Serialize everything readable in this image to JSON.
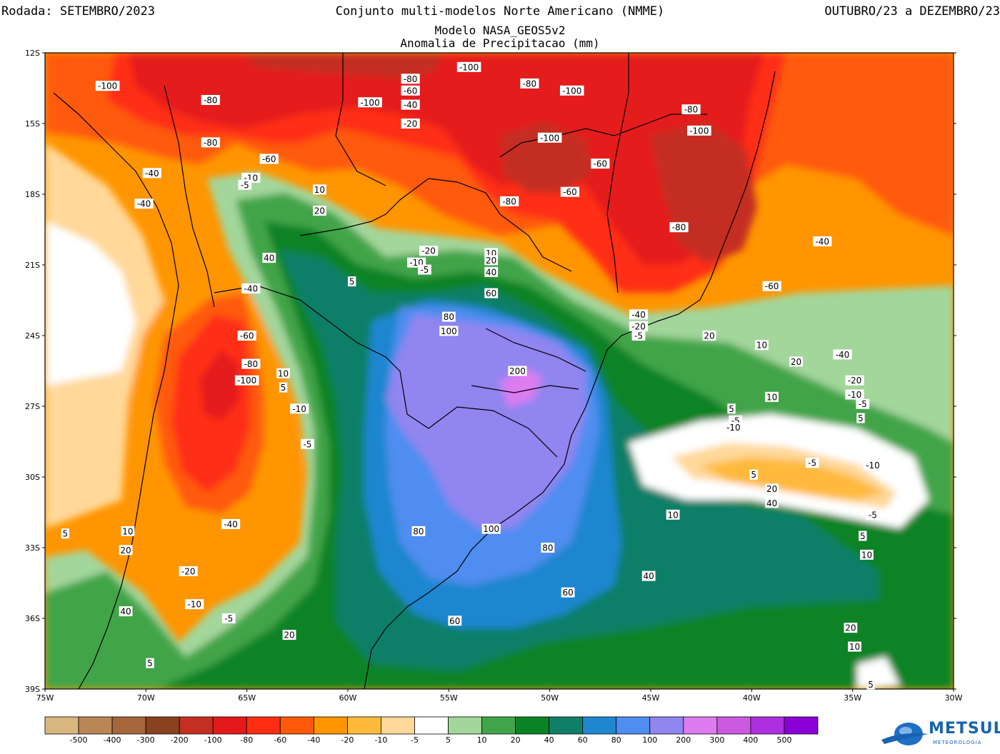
{
  "header": {
    "run": "Rodada: SETEMBRO/2023",
    "title": "Conjunto multi-modelos Norte Americano (NMME)",
    "period": "OUTUBRO/23 a DEZEMBRO/23",
    "model": "Modelo NASA_GEOS5v2",
    "variable": "Anomalia de Precipitacao (mm)"
  },
  "axes": {
    "lat_labels": [
      "12S",
      "15S",
      "18S",
      "21S",
      "24S",
      "27S",
      "30S",
      "33S",
      "36S",
      "39S"
    ],
    "lon_labels": [
      "75W",
      "70W",
      "65W",
      "60W",
      "55W",
      "50W",
      "45W",
      "40W",
      "35W",
      "30W"
    ]
  },
  "colorbar": {
    "colors": [
      "#d8b77e",
      "#b98656",
      "#a5663c",
      "#8a4120",
      "#c42f21",
      "#e41a1a",
      "#ff2e12",
      "#ff5a0a",
      "#ff9500",
      "#ffba3c",
      "#ffd89a",
      "#ffffff",
      "#a3d69b",
      "#42a44a",
      "#0a8325",
      "#107f68",
      "#1f86d0",
      "#4f8df0",
      "#9185f0",
      "#dc7cf0",
      "#cc5ae0",
      "#ad2fe0",
      "#8c00d8"
    ],
    "ticks": [
      "-500",
      "-400",
      "-300",
      "-200",
      "-100",
      "-80",
      "-60",
      "-40",
      "-20",
      "-10",
      "-5",
      "5",
      "10",
      "20",
      "40",
      "60",
      "80",
      "100",
      "200",
      "300",
      "400",
      "500"
    ]
  },
  "contour_labels": [
    {
      "t": "-100",
      "lon": -71.9,
      "lat": -13.4
    },
    {
      "t": "-80",
      "lon": -66.8,
      "lat": -14.0
    },
    {
      "t": "-80",
      "lon": -56.9,
      "lat": -13.1
    },
    {
      "t": "-60",
      "lon": -56.9,
      "lat": -13.6
    },
    {
      "t": "-40",
      "lon": -56.9,
      "lat": -14.2
    },
    {
      "t": "-100",
      "lon": -54.0,
      "lat": -12.6
    },
    {
      "t": "-100",
      "lon": -58.9,
      "lat": -14.1
    },
    {
      "t": "-80",
      "lon": -51.0,
      "lat": -13.3
    },
    {
      "t": "-100",
      "lon": -48.9,
      "lat": -13.6
    },
    {
      "t": "-80",
      "lon": -43.0,
      "lat": -14.4
    },
    {
      "t": "-100",
      "lon": -42.6,
      "lat": -15.3
    },
    {
      "t": "-20",
      "lon": -56.9,
      "lat": -15.0
    },
    {
      "t": "-80",
      "lon": -66.8,
      "lat": -15.8
    },
    {
      "t": "-100",
      "lon": -50.0,
      "lat": -15.6
    },
    {
      "t": "-60",
      "lon": -63.9,
      "lat": -16.5
    },
    {
      "t": "-60",
      "lon": -47.5,
      "lat": -16.7
    },
    {
      "t": "-40",
      "lon": -69.7,
      "lat": -17.1
    },
    {
      "t": "-10",
      "lon": -64.8,
      "lat": -17.3
    },
    {
      "t": "-5",
      "lon": -65.1,
      "lat": -17.6
    },
    {
      "t": "10",
      "lon": -61.4,
      "lat": -17.8
    },
    {
      "t": "-60",
      "lon": -49.0,
      "lat": -17.9
    },
    {
      "t": "-80",
      "lon": -52.0,
      "lat": -18.3
    },
    {
      "t": "-40",
      "lon": -70.1,
      "lat": -18.4
    },
    {
      "t": "20",
      "lon": -61.4,
      "lat": -18.7
    },
    {
      "t": "-80",
      "lon": -43.6,
      "lat": -19.4
    },
    {
      "t": "-40",
      "lon": -36.5,
      "lat": -20.0
    },
    {
      "t": "-20",
      "lon": -56.0,
      "lat": -20.4
    },
    {
      "t": "40",
      "lon": -63.9,
      "lat": -20.7
    },
    {
      "t": "10",
      "lon": -52.9,
      "lat": -20.5
    },
    {
      "t": "20",
      "lon": -52.9,
      "lat": -20.8
    },
    {
      "t": "-10",
      "lon": -56.6,
      "lat": -20.9
    },
    {
      "t": "-5",
      "lon": -56.2,
      "lat": -21.2
    },
    {
      "t": "40",
      "lon": -52.9,
      "lat": -21.3
    },
    {
      "t": "5",
      "lon": -59.8,
      "lat": -21.7
    },
    {
      "t": "-60",
      "lon": -39.0,
      "lat": -21.9
    },
    {
      "t": "60",
      "lon": -52.9,
      "lat": -22.2
    },
    {
      "t": "-40",
      "lon": -64.8,
      "lat": -22.0
    },
    {
      "t": "-40",
      "lon": -45.6,
      "lat": -23.1
    },
    {
      "t": "-20",
      "lon": -45.6,
      "lat": -23.6
    },
    {
      "t": "-5",
      "lon": -45.6,
      "lat": -24.0
    },
    {
      "t": "80",
      "lon": -55.0,
      "lat": -23.2
    },
    {
      "t": "100",
      "lon": -55.0,
      "lat": -23.8
    },
    {
      "t": "-60",
      "lon": -65.0,
      "lat": -24.0
    },
    {
      "t": "20",
      "lon": -42.1,
      "lat": -24.0
    },
    {
      "t": "10",
      "lon": -39.5,
      "lat": -24.4
    },
    {
      "t": "-40",
      "lon": -35.5,
      "lat": -24.8
    },
    {
      "t": "-80",
      "lon": -64.8,
      "lat": -25.2
    },
    {
      "t": "20",
      "lon": -37.8,
      "lat": -25.1
    },
    {
      "t": "200",
      "lon": -51.6,
      "lat": -25.5
    },
    {
      "t": "10",
      "lon": -63.2,
      "lat": -25.6
    },
    {
      "t": "-100",
      "lon": -65.0,
      "lat": -25.9
    },
    {
      "t": "-20",
      "lon": -34.9,
      "lat": -25.9
    },
    {
      "t": "5",
      "lon": -63.2,
      "lat": -26.2
    },
    {
      "t": "10",
      "lon": -39.0,
      "lat": -26.6
    },
    {
      "t": "-10",
      "lon": -34.9,
      "lat": -26.5
    },
    {
      "t": "-5",
      "lon": -34.5,
      "lat": -26.9
    },
    {
      "t": "-10",
      "lon": -62.4,
      "lat": -27.1
    },
    {
      "t": "5",
      "lon": -41.0,
      "lat": -27.1
    },
    {
      "t": "-5",
      "lon": -40.8,
      "lat": -27.6
    },
    {
      "t": "-10",
      "lon": -40.9,
      "lat": -27.9
    },
    {
      "t": "5",
      "lon": -34.6,
      "lat": -27.5
    },
    {
      "t": "-5",
      "lon": -62.0,
      "lat": -28.6
    },
    {
      "t": "-5",
      "lon": -37.0,
      "lat": -29.4
    },
    {
      "t": "-10",
      "lon": -34.0,
      "lat": -29.5
    },
    {
      "t": "5",
      "lon": -39.9,
      "lat": -29.9
    },
    {
      "t": "20",
      "lon": -39.0,
      "lat": -30.5
    },
    {
      "t": "40",
      "lon": -39.0,
      "lat": -31.1
    },
    {
      "t": "10",
      "lon": -43.9,
      "lat": -31.6
    },
    {
      "t": "-5",
      "lon": -34.0,
      "lat": -31.6
    },
    {
      "t": "5",
      "lon": -74.0,
      "lat": -32.4
    },
    {
      "t": "10",
      "lon": -70.9,
      "lat": -32.3
    },
    {
      "t": "-40",
      "lon": -65.8,
      "lat": -32.0
    },
    {
      "t": "80",
      "lon": -56.5,
      "lat": -32.3
    },
    {
      "t": "100",
      "lon": -52.9,
      "lat": -32.2
    },
    {
      "t": "5",
      "lon": -34.5,
      "lat": -32.5
    },
    {
      "t": "20",
      "lon": -71.0,
      "lat": -33.1
    },
    {
      "t": "80",
      "lon": -50.1,
      "lat": -33.0
    },
    {
      "t": "10",
      "lon": -34.3,
      "lat": -33.3
    },
    {
      "t": "-20",
      "lon": -67.9,
      "lat": -34.0
    },
    {
      "t": "40",
      "lon": -45.1,
      "lat": -34.2
    },
    {
      "t": "60",
      "lon": -49.1,
      "lat": -34.9
    },
    {
      "t": "-10",
      "lon": -67.6,
      "lat": -35.4
    },
    {
      "t": "-5",
      "lon": -65.9,
      "lat": -36.0
    },
    {
      "t": "40",
      "lon": -71.0,
      "lat": -35.7
    },
    {
      "t": "60",
      "lon": -54.7,
      "lat": -36.1
    },
    {
      "t": "20",
      "lon": -35.1,
      "lat": -36.4
    },
    {
      "t": "20",
      "lon": -62.9,
      "lat": -36.7
    },
    {
      "t": "10",
      "lon": -34.9,
      "lat": -37.2
    },
    {
      "t": "5",
      "lon": -69.8,
      "lat": -37.9
    },
    {
      "t": "5",
      "lon": -34.1,
      "lat": -38.8
    }
  ]
}
